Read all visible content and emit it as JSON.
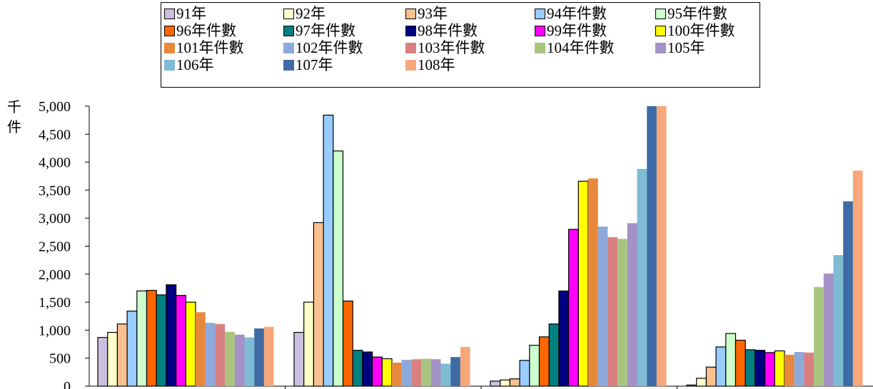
{
  "chart_data": {
    "type": "bar",
    "unit_label": [
      "千",
      "件"
    ],
    "categories": [
      "",
      "",
      "",
      ""
    ],
    "ylim": [
      0,
      5000
    ],
    "y_ticks": [
      "0",
      "500",
      "1,000",
      "1,500",
      "2,000",
      "2,500",
      "3,000",
      "3,500",
      "4,000",
      "4,500",
      "5,000"
    ],
    "legend_placement": "top",
    "grid": false,
    "series": [
      {
        "name": "91年",
        "color": "#CCC0E0",
        "values": [
          870,
          960,
          90,
          20
        ]
      },
      {
        "name": "92年",
        "color": "#FFFFCC",
        "values": [
          960,
          1500,
          110,
          140
        ]
      },
      {
        "name": "93年",
        "color": "#FAC090",
        "values": [
          1110,
          2920,
          130,
          340
        ]
      },
      {
        "name": "94年件數",
        "color": "#99CCFF",
        "values": [
          1340,
          4840,
          460,
          700
        ]
      },
      {
        "name": "95年件數",
        "color": "#CCFFCC",
        "values": [
          1700,
          4200,
          730,
          940
        ]
      },
      {
        "name": "96年件數",
        "color": "#FF6600",
        "values": [
          1710,
          1520,
          880,
          820
        ]
      },
      {
        "name": "97年件數",
        "color": "#008080",
        "values": [
          1630,
          640,
          1110,
          650
        ]
      },
      {
        "name": "98年件數",
        "color": "#000080",
        "values": [
          1810,
          610,
          1700,
          640
        ]
      },
      {
        "name": "99年件數",
        "color": "#FF00FF",
        "values": [
          1620,
          520,
          2800,
          600
        ]
      },
      {
        "name": "100年件數",
        "color": "#FFFF00",
        "values": [
          1500,
          490,
          3660,
          630
        ]
      },
      {
        "name": "101年件數",
        "color": "#E8883A",
        "values": [
          1320,
          420,
          3710,
          560
        ]
      },
      {
        "name": "102年件數",
        "color": "#8EA9DB",
        "values": [
          1130,
          470,
          2850,
          610
        ]
      },
      {
        "name": "103年件數",
        "color": "#D98080",
        "values": [
          1110,
          480,
          2660,
          600
        ]
      },
      {
        "name": "104年件數",
        "color": "#A9C47F",
        "values": [
          970,
          490,
          2630,
          1770
        ]
      },
      {
        "name": "105年",
        "color": "#A491C5",
        "values": [
          920,
          480,
          2910,
          2010
        ]
      },
      {
        "name": "106年",
        "color": "#7DBCD3",
        "values": [
          870,
          400,
          3880,
          2340
        ]
      },
      {
        "name": "107年",
        "color": "#3E6BA5",
        "values": [
          1030,
          520,
          5000,
          3300
        ]
      },
      {
        "name": "108年",
        "color": "#F8A77A",
        "values": [
          1060,
          700,
          5000,
          3850
        ]
      }
    ]
  }
}
